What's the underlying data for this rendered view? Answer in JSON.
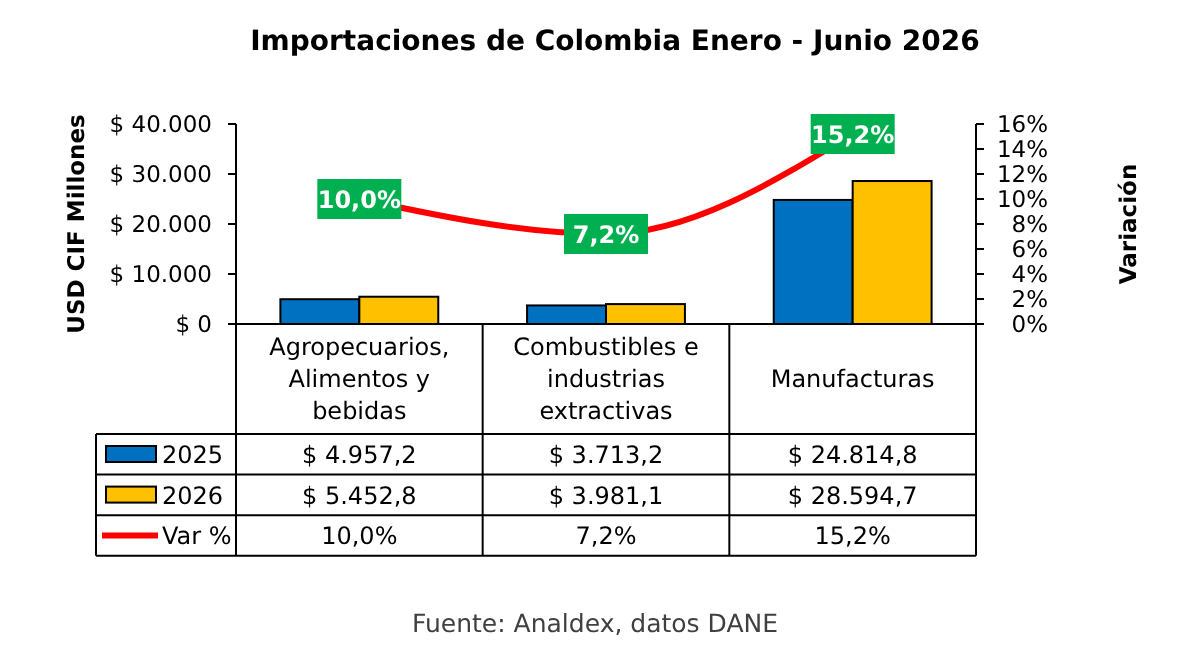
{
  "chart_data": {
    "type": "bar",
    "title": "Importaciones de Colombia Enero - Junio 2026",
    "ylabel": "USD CIF Millones",
    "y2label": "Variación",
    "categories": [
      "Agropecuarios, Alimentos y bebidas",
      "Combustibles e industrias extractivas",
      "Manufacturas"
    ],
    "series": [
      {
        "name": "2025",
        "color": "#0070c0",
        "values": [
          4957.2,
          3713.2,
          24814.8
        ],
        "value_labels": [
          "$ 4.957,2",
          "$ 3.713,2",
          "$ 24.814,8"
        ]
      },
      {
        "name": "2026",
        "color": "#ffc000",
        "values": [
          5452.8,
          3981.1,
          28594.7
        ],
        "value_labels": [
          "$ 5.452,8",
          "$ 3.981,1",
          "$ 28.594,7"
        ]
      },
      {
        "name": "Var %",
        "type": "line",
        "axis": "y2",
        "color": "#ff0000",
        "values": [
          10.0,
          7.2,
          15.2
        ],
        "value_labels": [
          "10,0%",
          "7,2%",
          "15,2%"
        ],
        "marker": "square",
        "line_style": "solid"
      }
    ],
    "ylim": [
      0,
      40000
    ],
    "yticks": [
      {
        "value": 0,
        "label": "$ 0"
      },
      {
        "value": 10000,
        "label": "$ 10.000"
      },
      {
        "value": 20000,
        "label": "$ 20.000"
      },
      {
        "value": 30000,
        "label": "$ 30.000"
      },
      {
        "value": 40000,
        "label": "$ 40.000"
      }
    ],
    "y2lim": [
      0,
      16
    ],
    "y2ticks": [
      {
        "value": 0,
        "label": "0%"
      },
      {
        "value": 2,
        "label": "2%"
      },
      {
        "value": 4,
        "label": "4%"
      },
      {
        "value": 6,
        "label": "6%"
      },
      {
        "value": 8,
        "label": "8%"
      },
      {
        "value": 10,
        "label": "10%"
      },
      {
        "value": 12,
        "label": "12%"
      },
      {
        "value": 14,
        "label": "14%"
      },
      {
        "value": 16,
        "label": "16%"
      }
    ],
    "grid": false,
    "legend": "bottom",
    "annotations": [
      "Fuente: Analdex, datos DANE"
    ]
  }
}
